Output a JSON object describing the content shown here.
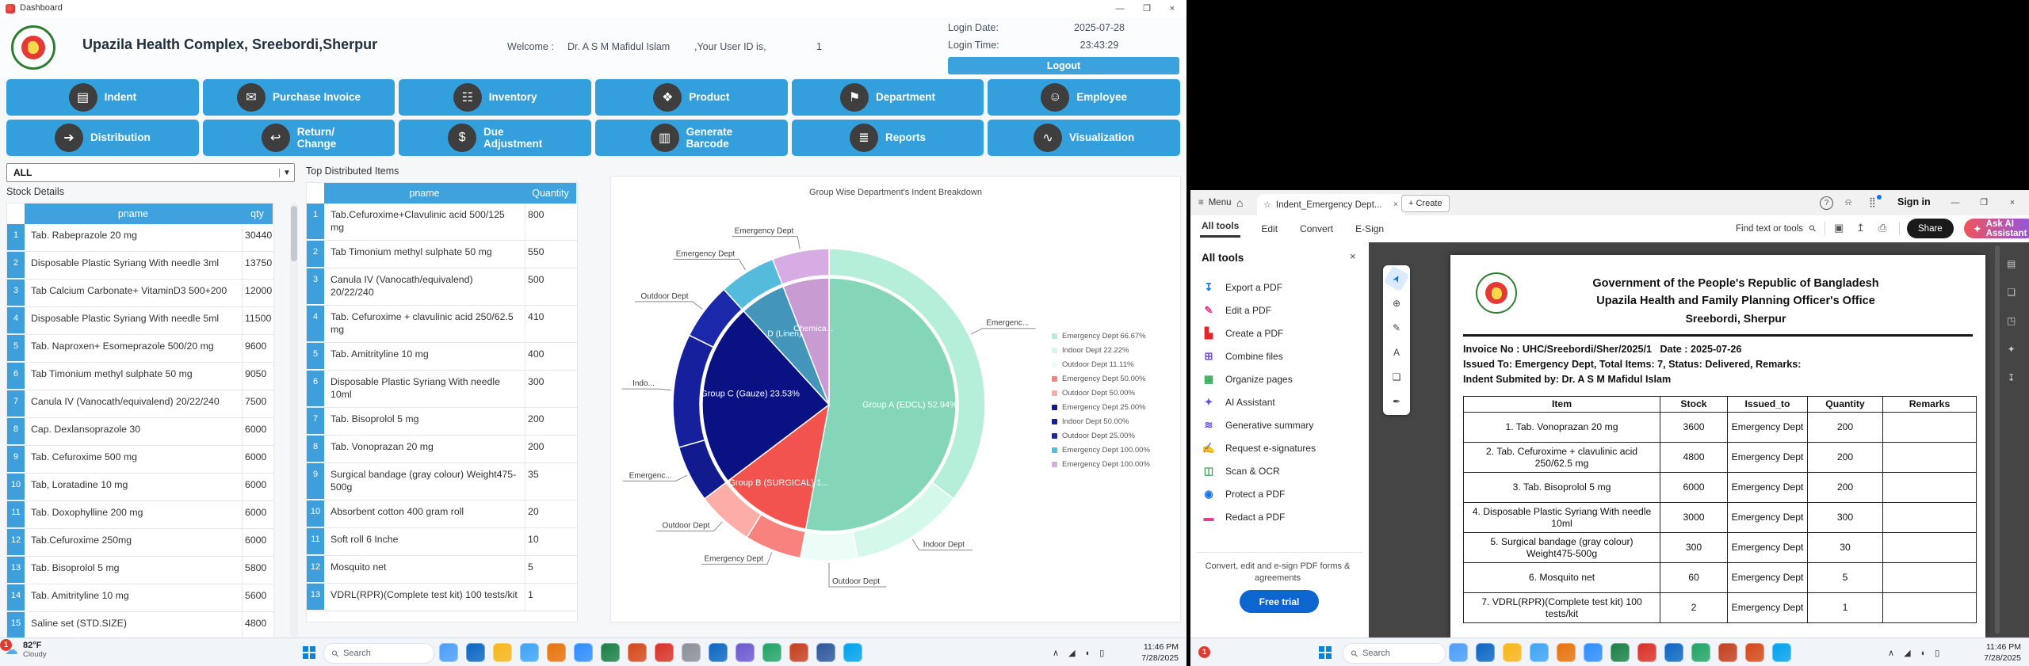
{
  "left": {
    "window_title": "Dashboard",
    "header": {
      "title": "Upazila Health Complex, Sreebordi,Sherpur",
      "welcome_label": "Welcome :",
      "user_name": "Dr. A S M Mafidul Islam",
      "user_id_label": ",Your User ID is,",
      "user_id": "1",
      "login_date_label": "Login Date:",
      "login_date": "2025-07-28",
      "login_time_label": "Login Time:",
      "login_time": "23:43:29",
      "logout_label": "Logout"
    },
    "nav": [
      {
        "label": "Indent",
        "glyph": "▤"
      },
      {
        "label": "Purchase Invoice",
        "glyph": "✉"
      },
      {
        "label": "Inventory",
        "glyph": "☷"
      },
      {
        "label": "Product",
        "glyph": "❖"
      },
      {
        "label": "Department",
        "glyph": "⚑"
      },
      {
        "label": "Employee",
        "glyph": "☺"
      },
      {
        "label": "Distribution",
        "glyph": "➔"
      },
      {
        "label": "Return/\nChange",
        "glyph": "↩"
      },
      {
        "label": "Due\nAdjustment",
        "glyph": "$"
      },
      {
        "label": "Generate\nBarcode",
        "glyph": "▥"
      },
      {
        "label": "Reports",
        "glyph": "≣"
      },
      {
        "label": "Visualization",
        "glyph": "∿"
      }
    ],
    "filter_value": "ALL",
    "stock": {
      "label": "Stock Details",
      "columns": [
        "pname",
        "qty"
      ],
      "rows": [
        [
          "Tab. Rabeprazole 20 mg",
          "30440"
        ],
        [
          "Disposable Plastic Syriang With needle 3ml",
          "13750"
        ],
        [
          "Tab Calcium Carbonate+ VitaminD3 500+200",
          "12000"
        ],
        [
          "Disposable Plastic Syriang With needle 5ml",
          "11500"
        ],
        [
          "Tab. Naproxen+ Esomeprazole 500/20 mg",
          "9600"
        ],
        [
          "Tab Timonium methyl sulphate 50 mg",
          "9050"
        ],
        [
          "Canula IV (Vanocath/equivalend) 20/22/240",
          "7500"
        ],
        [
          "Cap. Dexlansoprazole 30",
          "6000"
        ],
        [
          "Tab. Cefuroxime 500 mg",
          "6000"
        ],
        [
          "Tab, Loratadine 10 mg",
          "6000"
        ],
        [
          "Tab. Doxophylline 200 mg",
          "6000"
        ],
        [
          "Tab.Cefuroxime 250mg",
          "6000"
        ],
        [
          "Tab. Bisoprolol 5 mg",
          "5800"
        ],
        [
          "Tab. Amitrityline 10 mg",
          "5600"
        ],
        [
          "Saline set (STD.SIZE)",
          "4800"
        ]
      ]
    },
    "top": {
      "label": "Top Distributed Items",
      "columns": [
        "pname",
        "Quantity"
      ],
      "rows": [
        [
          "Tab.Cefuroxime+Clavulinic acid 500/125 mg",
          "800"
        ],
        [
          "Tab Timonium methyl sulphate 50 mg",
          "550"
        ],
        [
          "Canula IV (Vanocath/equivalend) 20/22/240",
          "500"
        ],
        [
          "Tab. Cefuroxime + clavulinic acid 250/62.5 mg",
          "410"
        ],
        [
          "Tab. Amitrityline 10 mg",
          "400"
        ],
        [
          "Disposable Plastic Syriang With needle 10ml",
          "300"
        ],
        [
          "Tab. Bisoprolol 5 mg",
          "200"
        ],
        [
          "Tab. Vonoprazan 20 mg",
          "200"
        ],
        [
          "Surgical bandage (gray colour) Weight475-500g",
          "35"
        ],
        [
          "Absorbent cotton 400 gram roll",
          "20"
        ],
        [
          "Soft roll 6 Inche",
          "10"
        ],
        [
          "Mosquito net",
          "5"
        ],
        [
          "VDRL(RPR)(Complete test kit) 100 tests/kit",
          "1"
        ]
      ]
    },
    "taskbar": {
      "badge": "1",
      "weather_temp": "82°F",
      "weather_cond": "Cloudy",
      "search": "Search",
      "apps": [
        "#4a9df8",
        "#0a64c2",
        "#f8b517",
        "#3da4f5",
        "#e8710a",
        "#2d8cff",
        "#1a7f43",
        "#d64718",
        "#d93025",
        "#8a8f98",
        "#0a66c2",
        "#6b57d0",
        "#21a366",
        "#c43e1c",
        "#2b579a",
        "#00a2ed"
      ],
      "time": "11:46 PM",
      "date": "7/28/2025"
    }
  },
  "chart_data": {
    "type": "pie",
    "variant": "sunburst",
    "title": "Group Wise Department's Indent Breakdown",
    "legend_position": "right",
    "inner": [
      {
        "label": "Group A (EDCL)",
        "pct": 52.94,
        "color": "#85d6b9",
        "display": "Group A (EDCL) 52.94%",
        "la": 92,
        "lr": 102,
        "fs": 11
      },
      {
        "label": "Group B (SURGICAL)",
        "pct": 11.76,
        "color": "#f2534e",
        "display": "Group B (SURGICAL) 1...",
        "la": 212,
        "lr": 120,
        "fs": 11
      },
      {
        "label": "Group C (Gauze)",
        "pct": 23.53,
        "color": "#0a1283",
        "display": "Group C (Gauze) 23.53%",
        "la": 276,
        "lr": 100,
        "fs": 11
      },
      {
        "label": "Group D (Linen)",
        "pct": 5.88,
        "color": "#4396ba",
        "display": "D (Linen)",
        "la": 327,
        "lr": 103,
        "fs": 10.5
      },
      {
        "label": "Chemical Reagent",
        "pct": 5.89,
        "color": "#c89bd3",
        "display": "Chemica...",
        "la": 348,
        "lr": 95,
        "fs": 10.5
      }
    ],
    "outer": [
      {
        "group": "Group A (EDCL)",
        "label": "Emergency Dept",
        "pct_of_group": 66.67,
        "color": "#b5efd9",
        "callout": "Emergenc..."
      },
      {
        "group": "Group A (EDCL)",
        "label": "Indoor Dept",
        "pct_of_group": 22.22,
        "color": "#d4f8ea",
        "callout": "Indoor Dept"
      },
      {
        "group": "Group A (EDCL)",
        "label": "Outdoor Dept",
        "pct_of_group": 11.11,
        "color": "#ebfdf6",
        "callout": "Outdoor Dept"
      },
      {
        "group": "Group B (SURGICAL)",
        "label": "Emergency Dept",
        "pct_of_group": 50.0,
        "color": "#f8827d",
        "callout": "Emergency Dept"
      },
      {
        "group": "Group B (SURGICAL)",
        "label": "Outdoor Dept",
        "pct_of_group": 50.0,
        "color": "#fcada7",
        "callout": "Outdoor Dept"
      },
      {
        "group": "Group C (Gauze)",
        "label": "Emergency Dept",
        "pct_of_group": 25.0,
        "color": "#121b8e",
        "callout": "Emergenc..."
      },
      {
        "group": "Group C (Gauze)",
        "label": "Indoor Dept",
        "pct_of_group": 50.0,
        "color": "#161f9c",
        "callout": "Indo..."
      },
      {
        "group": "Group C (Gauze)",
        "label": "Outdoor Dept",
        "pct_of_group": 25.0,
        "color": "#1b28a9",
        "callout": "Outdoor Dept"
      },
      {
        "group": "Group D (Linen)",
        "label": "Emergency Dept",
        "pct_of_group": 100.0,
        "color": "#54bbdc",
        "callout": "Emergency Dept"
      },
      {
        "group": "Chemical Reagent",
        "label": "Emergency Dept",
        "pct_of_group": 100.0,
        "color": "#d7abe3",
        "callout": "Emergency Dept"
      }
    ],
    "legend": [
      "Emergency Dept 66.67%",
      "Indoor Dept 22.22%",
      "Outdoor Dept 11.11%",
      "Emergency Dept 50.00%",
      "Outdoor Dept 50.00%",
      "Emergency Dept 25.00%",
      "Indoor Dept 50.00%",
      "Outdoor Dept 25.00%",
      "Emergency Dept 100.00%",
      "Emergency Dept 100.00%"
    ]
  },
  "right": {
    "acrobat": {
      "menu_label": "Menu",
      "tab_title": "Indent_Emergency Dept...",
      "create_label": "+ Create",
      "signin_label": "Sign in",
      "nav_tabs": [
        "All tools",
        "Edit",
        "Convert",
        "E-Sign"
      ],
      "find_label": "Find text or tools",
      "share_label": "Share",
      "ai_label": "Ask AI Assistant",
      "panel": {
        "title": "All tools",
        "items": [
          {
            "label": "Export a PDF",
            "color": "#1473e6",
            "glyph": "↧"
          },
          {
            "label": "Edit a PDF",
            "color": "#e23d8f",
            "glyph": "✎"
          },
          {
            "label": "Create a PDF",
            "color": "#e5252a",
            "glyph": "▙"
          },
          {
            "label": "Combine files",
            "color": "#6f4fe0",
            "glyph": "⊞"
          },
          {
            "label": "Organize pages",
            "color": "#3ba755",
            "glyph": "▦"
          },
          {
            "label": "AI Assistant",
            "color": "#6f4fe0",
            "glyph": "✦"
          },
          {
            "label": "Generative summary",
            "color": "#6f4fe0",
            "glyph": "≋"
          },
          {
            "label": "Request e-signatures",
            "color": "#b32cc9",
            "glyph": "✍"
          },
          {
            "label": "Scan & OCR",
            "color": "#3ba755",
            "glyph": "◫"
          },
          {
            "label": "Protect a PDF",
            "color": "#1473e6",
            "glyph": "◉"
          },
          {
            "label": "Redact a PDF",
            "color": "#e23d8f",
            "glyph": "▬"
          }
        ],
        "promo": "Convert, edit and e-sign PDF forms & agreements",
        "cta": "Free trial"
      },
      "mini_tools": [
        {
          "name": "select-tool",
          "glyph": "➤",
          "active": true
        },
        {
          "name": "zoom-tool",
          "glyph": "⊕"
        },
        {
          "name": "annotate-tool",
          "glyph": "✎"
        },
        {
          "name": "text-tool",
          "glyph": "A"
        },
        {
          "name": "shape-tool",
          "glyph": "❏"
        },
        {
          "name": "sign-tool",
          "glyph": "✒"
        }
      ],
      "doc": {
        "title1": "Government of the People's Republic of Bangladesh",
        "title2": "Upazila Health and Family Planning Officer's Office",
        "title3": "Sreebordi, Sherpur",
        "invoice_no": "Invoice No : UHC/Sreebordi/Sher/2025/1",
        "invoice_date": "Date : 2025-07-26",
        "issued_line": "Issued To: Emergency Dept, Total Items: 7, Status: Delivered, Remarks:",
        "submitted_line": "Indent Submited by: Dr. A S M Mafidul Islam",
        "columns": [
          "Item",
          "Stock",
          "Issued_to",
          "Quantity",
          "Remarks"
        ],
        "rows": [
          [
            "1. Tab. Vonoprazan 20 mg",
            "3600",
            "Emergency Dept",
            "200",
            ""
          ],
          [
            "2. Tab. Cefuroxime + clavulinic acid 250/62.5 mg",
            "4800",
            "Emergency Dept",
            "200",
            ""
          ],
          [
            "3. Tab. Bisoprolol 5 mg",
            "6000",
            "Emergency Dept",
            "200",
            ""
          ],
          [
            "4. Disposable Plastic Syriang With needle 10ml",
            "3000",
            "Emergency Dept",
            "300",
            ""
          ],
          [
            "5. Surgical bandage (gray colour) Weight475-500g",
            "300",
            "Emergency Dept",
            "30",
            ""
          ],
          [
            "6. Mosquito net",
            "60",
            "Emergency Dept",
            "5",
            ""
          ],
          [
            "7. VDRL(RPR)(Complete test kit) 100 tests/kit",
            "2",
            "Emergency Dept",
            "1",
            ""
          ]
        ]
      }
    },
    "taskbar": {
      "badge": "1",
      "search": "Search",
      "apps": [
        "#4a9df8",
        "#0a64c2",
        "#f8b517",
        "#3da4f5",
        "#e8710a",
        "#2d8cff",
        "#1a7f43",
        "#d93025",
        "#0a66c2",
        "#21a366",
        "#c43e1c",
        "#d64718",
        "#00a2ed"
      ],
      "time": "11:46 PM",
      "date": "7/28/2025"
    }
  }
}
